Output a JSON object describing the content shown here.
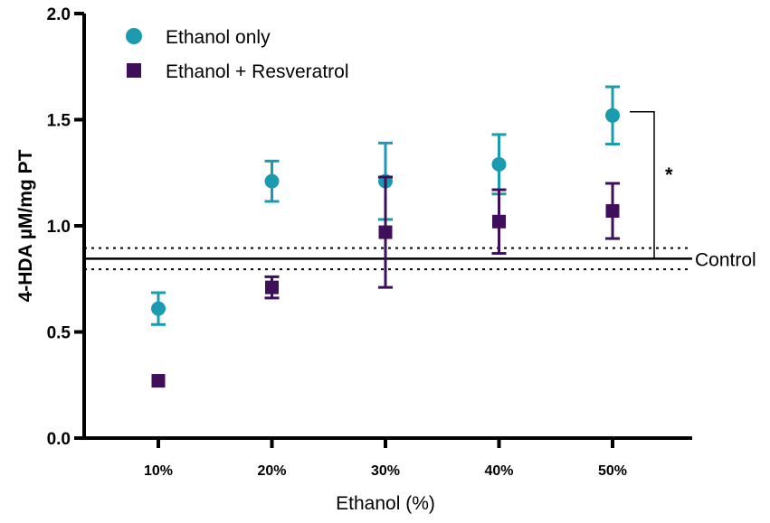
{
  "chart_data": {
    "type": "scatter",
    "xlabel": "Ethanol (%)",
    "ylabel": "4-HDA µM/mg PT",
    "categories": [
      "10%",
      "20%",
      "30%",
      "40%",
      "50%"
    ],
    "ylim": [
      0,
      2.0
    ],
    "yticks": [
      "0.0",
      "0.5",
      "1.0",
      "1.5",
      "2.0"
    ],
    "series": [
      {
        "name": "Ethanol only",
        "marker": "circle",
        "color": "#1a9bb0",
        "values": [
          0.61,
          1.21,
          1.21,
          1.29,
          1.52
        ],
        "error": [
          0.075,
          0.095,
          0.18,
          0.14,
          0.135
        ]
      },
      {
        "name": "Ethanol + Resveratrol",
        "marker": "square",
        "color": "#3f0f5c",
        "values": [
          0.27,
          0.71,
          0.97,
          1.02,
          1.07
        ],
        "error": [
          0.0,
          0.05,
          0.26,
          0.15,
          0.13
        ]
      }
    ],
    "reference": {
      "label": "Control",
      "value": 0.845,
      "band": [
        0.795,
        0.895
      ]
    },
    "significance": {
      "label": "*",
      "category": "50%",
      "between": [
        1.52,
        1.07
      ]
    },
    "legend": "top-left"
  }
}
